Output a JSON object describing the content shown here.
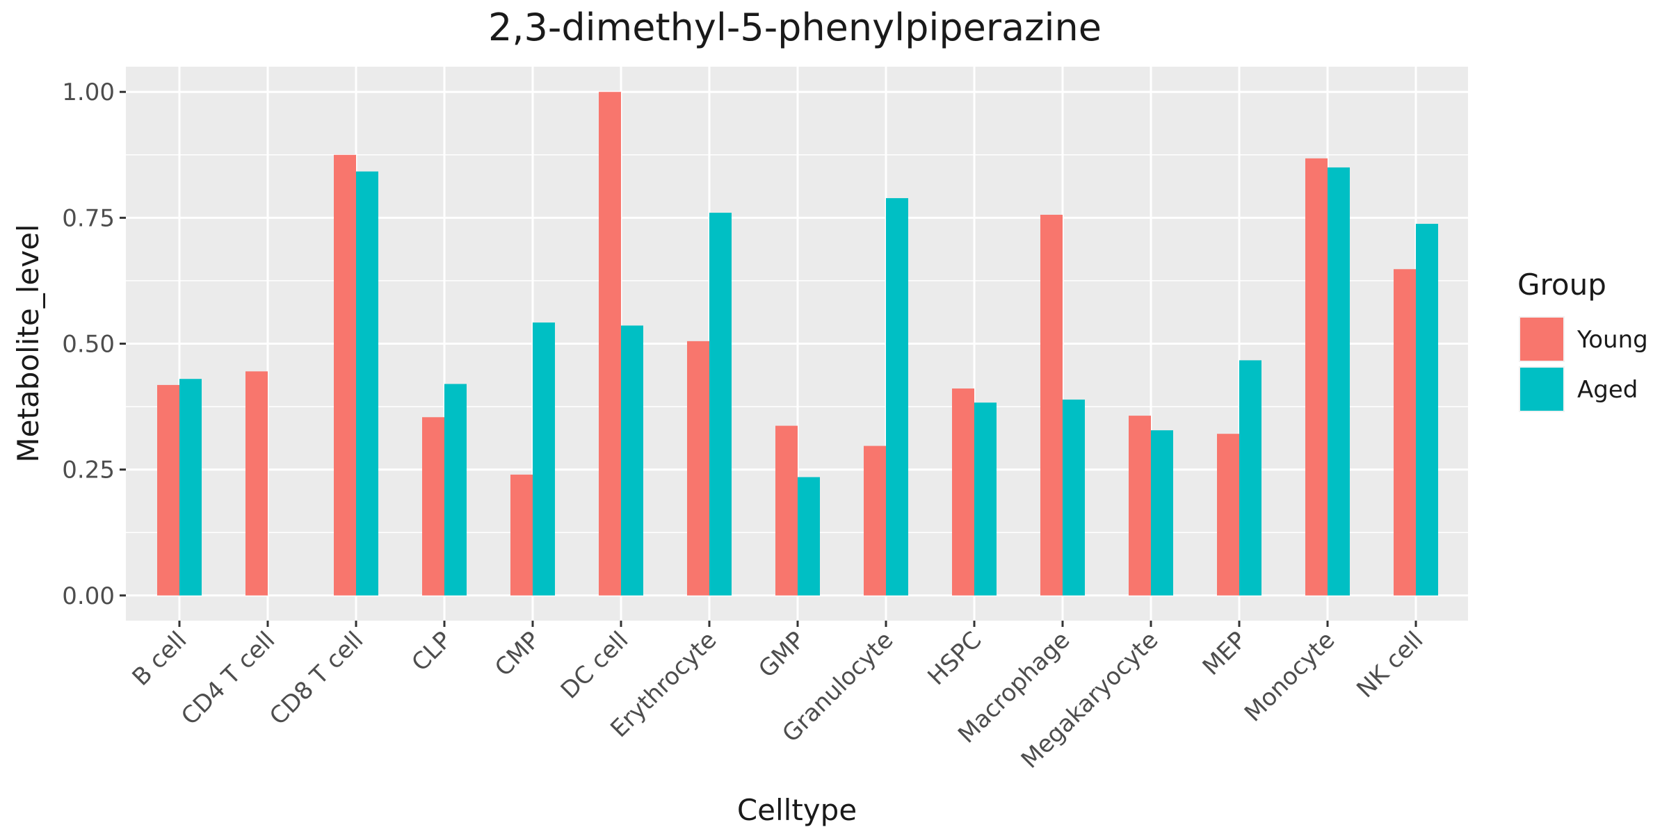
{
  "chart_data": {
    "type": "bar",
    "title": "2,3-dimethyl-5-phenylpiperazine",
    "xlabel": "Celltype",
    "ylabel": "Metabolite_level",
    "ylim": [
      -0.05,
      1.05
    ],
    "yticks": [
      "0.00",
      "0.25",
      "0.50",
      "0.75",
      "1.00"
    ],
    "ytick_values": [
      0,
      0.25,
      0.5,
      0.75,
      1.0
    ],
    "grid": true,
    "legend_position": "right",
    "categories": [
      "B cell",
      "CD4 T cell",
      "CD8 T cell",
      "CLP",
      "CMP",
      "DC cell",
      "Erythrocyte",
      "GMP",
      "Granulocyte",
      "HSPC",
      "Macrophage",
      "Megakaryocyte",
      "MEP",
      "Monocyte",
      "NK cell"
    ],
    "legend_title": "Group",
    "series": [
      {
        "name": "Young",
        "color": "#F8766D",
        "values": [
          0.418,
          0.445,
          0.875,
          0.354,
          0.24,
          1.0,
          0.505,
          0.337,
          0.297,
          0.411,
          0.756,
          0.357,
          0.321,
          0.868,
          0.648
        ]
      },
      {
        "name": "Aged",
        "color": "#00BFC4",
        "values": [
          0.43,
          null,
          0.842,
          0.42,
          0.542,
          0.536,
          0.76,
          0.235,
          0.789,
          0.383,
          0.389,
          0.328,
          0.467,
          0.85,
          0.738
        ]
      }
    ]
  }
}
